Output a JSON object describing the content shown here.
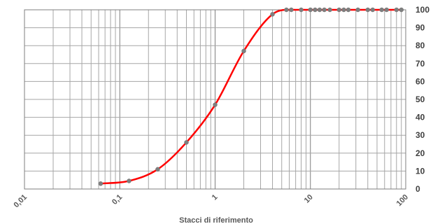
{
  "chart_data": {
    "type": "line",
    "title": "",
    "xlabel": "Stacci di riferimento",
    "ylabel": "",
    "x_scale": "log",
    "xlim": [
      0.01,
      100
    ],
    "ylim": [
      0,
      100
    ],
    "x_tick_labels": [
      "0,01",
      "0,1",
      "1",
      "10",
      "100"
    ],
    "y_tick_labels": [
      "0",
      "10",
      "20",
      "30",
      "40",
      "50",
      "60",
      "70",
      "80",
      "90",
      "100"
    ],
    "grid": true,
    "legend": "none",
    "series": [
      {
        "color": "#ff0000",
        "marker_color": "#7f7f7f",
        "x": [
          0.063,
          0.125,
          0.25,
          0.5,
          1,
          2,
          4,
          5.6,
          6.3,
          8,
          10,
          11.2,
          12.5,
          14,
          16,
          20,
          22.4,
          25,
          31.5,
          40,
          45,
          56,
          63,
          80,
          90
        ],
        "y": [
          3,
          4.5,
          11,
          26,
          47,
          77,
          97.5,
          100,
          100,
          100,
          100,
          100,
          100,
          100,
          100,
          100,
          100,
          100,
          100,
          100,
          100,
          100,
          100,
          100,
          100
        ]
      }
    ]
  }
}
